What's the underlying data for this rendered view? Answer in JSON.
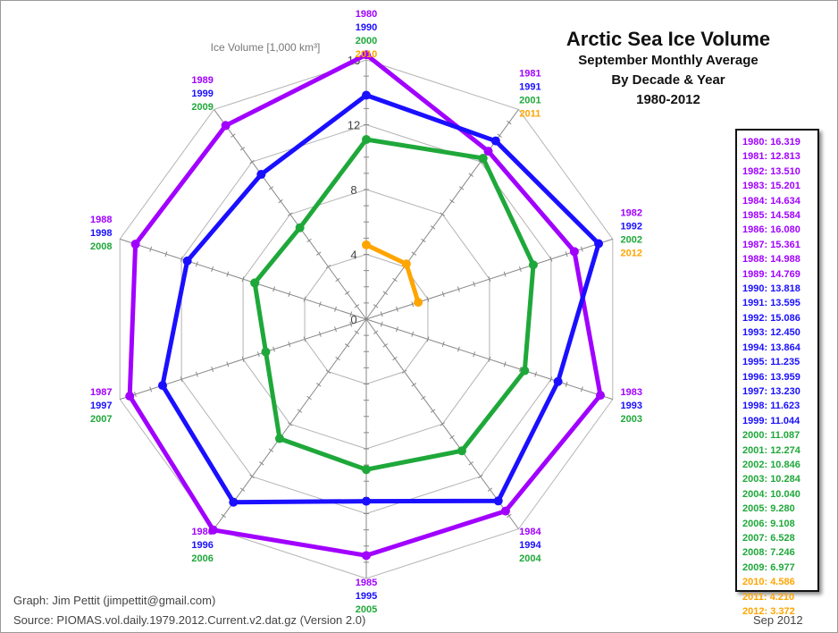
{
  "title": {
    "main": "Arctic Sea Ice Volume",
    "line2": "September Monthly Average",
    "line3": "By Decade & Year",
    "line4": "1980-2012"
  },
  "credits": {
    "graph": "Graph: Jim Pettit (jimpettit@gmail.com)",
    "source": "Source: PIOMAS.vol.daily.1979.2012.Current.v2.dat.gz (Version 2.0)",
    "date": "Sep 2012"
  },
  "colors": {
    "1980s": "#a100ff",
    "1990s": "#1a0fff",
    "2000s": "#1fa83a",
    "2010s": "#ffa500",
    "grid": "#b4b4b4"
  },
  "chart_data": {
    "type": "radar",
    "axis_label": "Ice Volume [1,000 km³]",
    "rlim": [
      0,
      16
    ],
    "tick_labels": [
      "0",
      "4",
      "8",
      "12",
      "16"
    ],
    "spoke_labels": [
      [
        "1980",
        "1990",
        "2000",
        "2010"
      ],
      [
        "1981",
        "1991",
        "2001",
        "2011"
      ],
      [
        "1982",
        "1992",
        "2002",
        "2012"
      ],
      [
        "1983",
        "1993",
        "2003"
      ],
      [
        "1984",
        "1994",
        "2004"
      ],
      [
        "1985",
        "1995",
        "2005"
      ],
      [
        "1986",
        "1996",
        "2006"
      ],
      [
        "1987",
        "1997",
        "2007"
      ],
      [
        "1988",
        "1998",
        "2008"
      ],
      [
        "1989",
        "1999",
        "2009"
      ]
    ],
    "series": [
      {
        "decade": "1980s",
        "values": [
          16.319,
          12.813,
          13.51,
          15.201,
          14.634,
          14.584,
          16.08,
          15.361,
          14.988,
          14.769
        ]
      },
      {
        "decade": "1990s",
        "values": [
          13.818,
          13.595,
          15.086,
          12.45,
          13.864,
          11.235,
          13.959,
          13.23,
          11.623,
          11.044
        ]
      },
      {
        "decade": "2000s",
        "values": [
          11.087,
          12.274,
          10.846,
          10.284,
          10.04,
          9.28,
          9.108,
          6.528,
          7.246,
          6.977
        ]
      },
      {
        "decade": "2010s",
        "values": [
          4.586,
          4.21,
          3.372
        ]
      }
    ],
    "legend": [
      {
        "text": "1980: 16.319",
        "decade": "1980s"
      },
      {
        "text": "1981: 12.813",
        "decade": "1980s"
      },
      {
        "text": "1982: 13.510",
        "decade": "1980s"
      },
      {
        "text": "1983: 15.201",
        "decade": "1980s"
      },
      {
        "text": "1984: 14.634",
        "decade": "1980s"
      },
      {
        "text": "1985: 14.584",
        "decade": "1980s"
      },
      {
        "text": "1986: 16.080",
        "decade": "1980s"
      },
      {
        "text": "1987: 15.361",
        "decade": "1980s"
      },
      {
        "text": "1988: 14.988",
        "decade": "1980s"
      },
      {
        "text": "1989: 14.769",
        "decade": "1980s"
      },
      {
        "text": "1990: 13.818",
        "decade": "1990s"
      },
      {
        "text": "1991: 13.595",
        "decade": "1990s"
      },
      {
        "text": "1992: 15.086",
        "decade": "1990s"
      },
      {
        "text": "1993: 12.450",
        "decade": "1990s"
      },
      {
        "text": "1994: 13.864",
        "decade": "1990s"
      },
      {
        "text": "1995: 11.235",
        "decade": "1990s"
      },
      {
        "text": "1996: 13.959",
        "decade": "1990s"
      },
      {
        "text": "1997: 13.230",
        "decade": "1990s"
      },
      {
        "text": "1998: 11.623",
        "decade": "1990s"
      },
      {
        "text": "1999: 11.044",
        "decade": "1990s"
      },
      {
        "text": "2000: 11.087",
        "decade": "2000s"
      },
      {
        "text": "2001: 12.274",
        "decade": "2000s"
      },
      {
        "text": "2002: 10.846",
        "decade": "2000s"
      },
      {
        "text": "2003: 10.284",
        "decade": "2000s"
      },
      {
        "text": "2004: 10.040",
        "decade": "2000s"
      },
      {
        "text": "2005: 9.280",
        "decade": "2000s"
      },
      {
        "text": "2006: 9.108",
        "decade": "2000s"
      },
      {
        "text": "2007: 6.528",
        "decade": "2000s"
      },
      {
        "text": "2008: 7.246",
        "decade": "2000s"
      },
      {
        "text": "2009: 6.977",
        "decade": "2000s"
      },
      {
        "text": "2010: 4.586",
        "decade": "2010s"
      },
      {
        "text": "2011: 4.210",
        "decade": "2010s"
      },
      {
        "text": "2012: 3.372",
        "decade": "2010s"
      }
    ]
  }
}
